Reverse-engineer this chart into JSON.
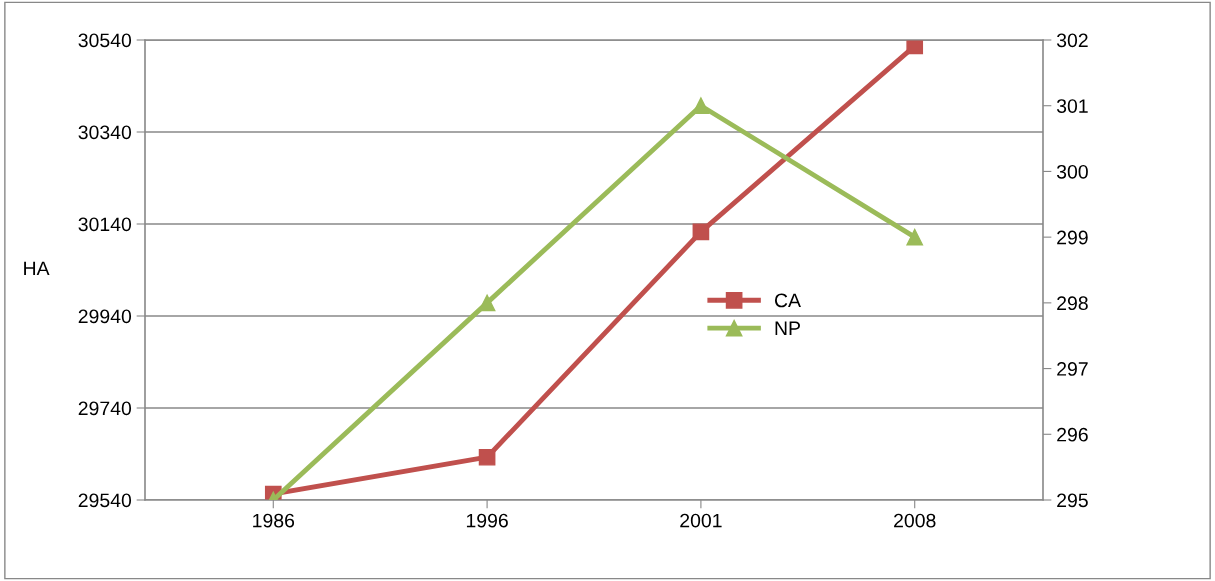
{
  "chart_data": {
    "type": "line",
    "ylabel": "HA",
    "categories": [
      "1986",
      "1996",
      "2001",
      "2008"
    ],
    "series": [
      {
        "name": "CA",
        "color": "#c0504d",
        "marker": "square",
        "values": [
          29553,
          29633,
          30123,
          30527
        ]
      },
      {
        "name": "NP",
        "color": "#9bbb59",
        "marker": "triangle",
        "axis": "y2",
        "values": [
          295,
          298,
          301,
          299
        ]
      }
    ],
    "ylim": [
      29540,
      30540
    ],
    "yticks": [
      29540,
      29740,
      29940,
      30140,
      30340,
      30540
    ],
    "y2lim": [
      295,
      302
    ],
    "y2ticks": [
      295,
      296,
      297,
      298,
      299,
      300,
      301,
      302
    ],
    "grid": "y",
    "legend": "center right",
    "line_style": "solid"
  }
}
